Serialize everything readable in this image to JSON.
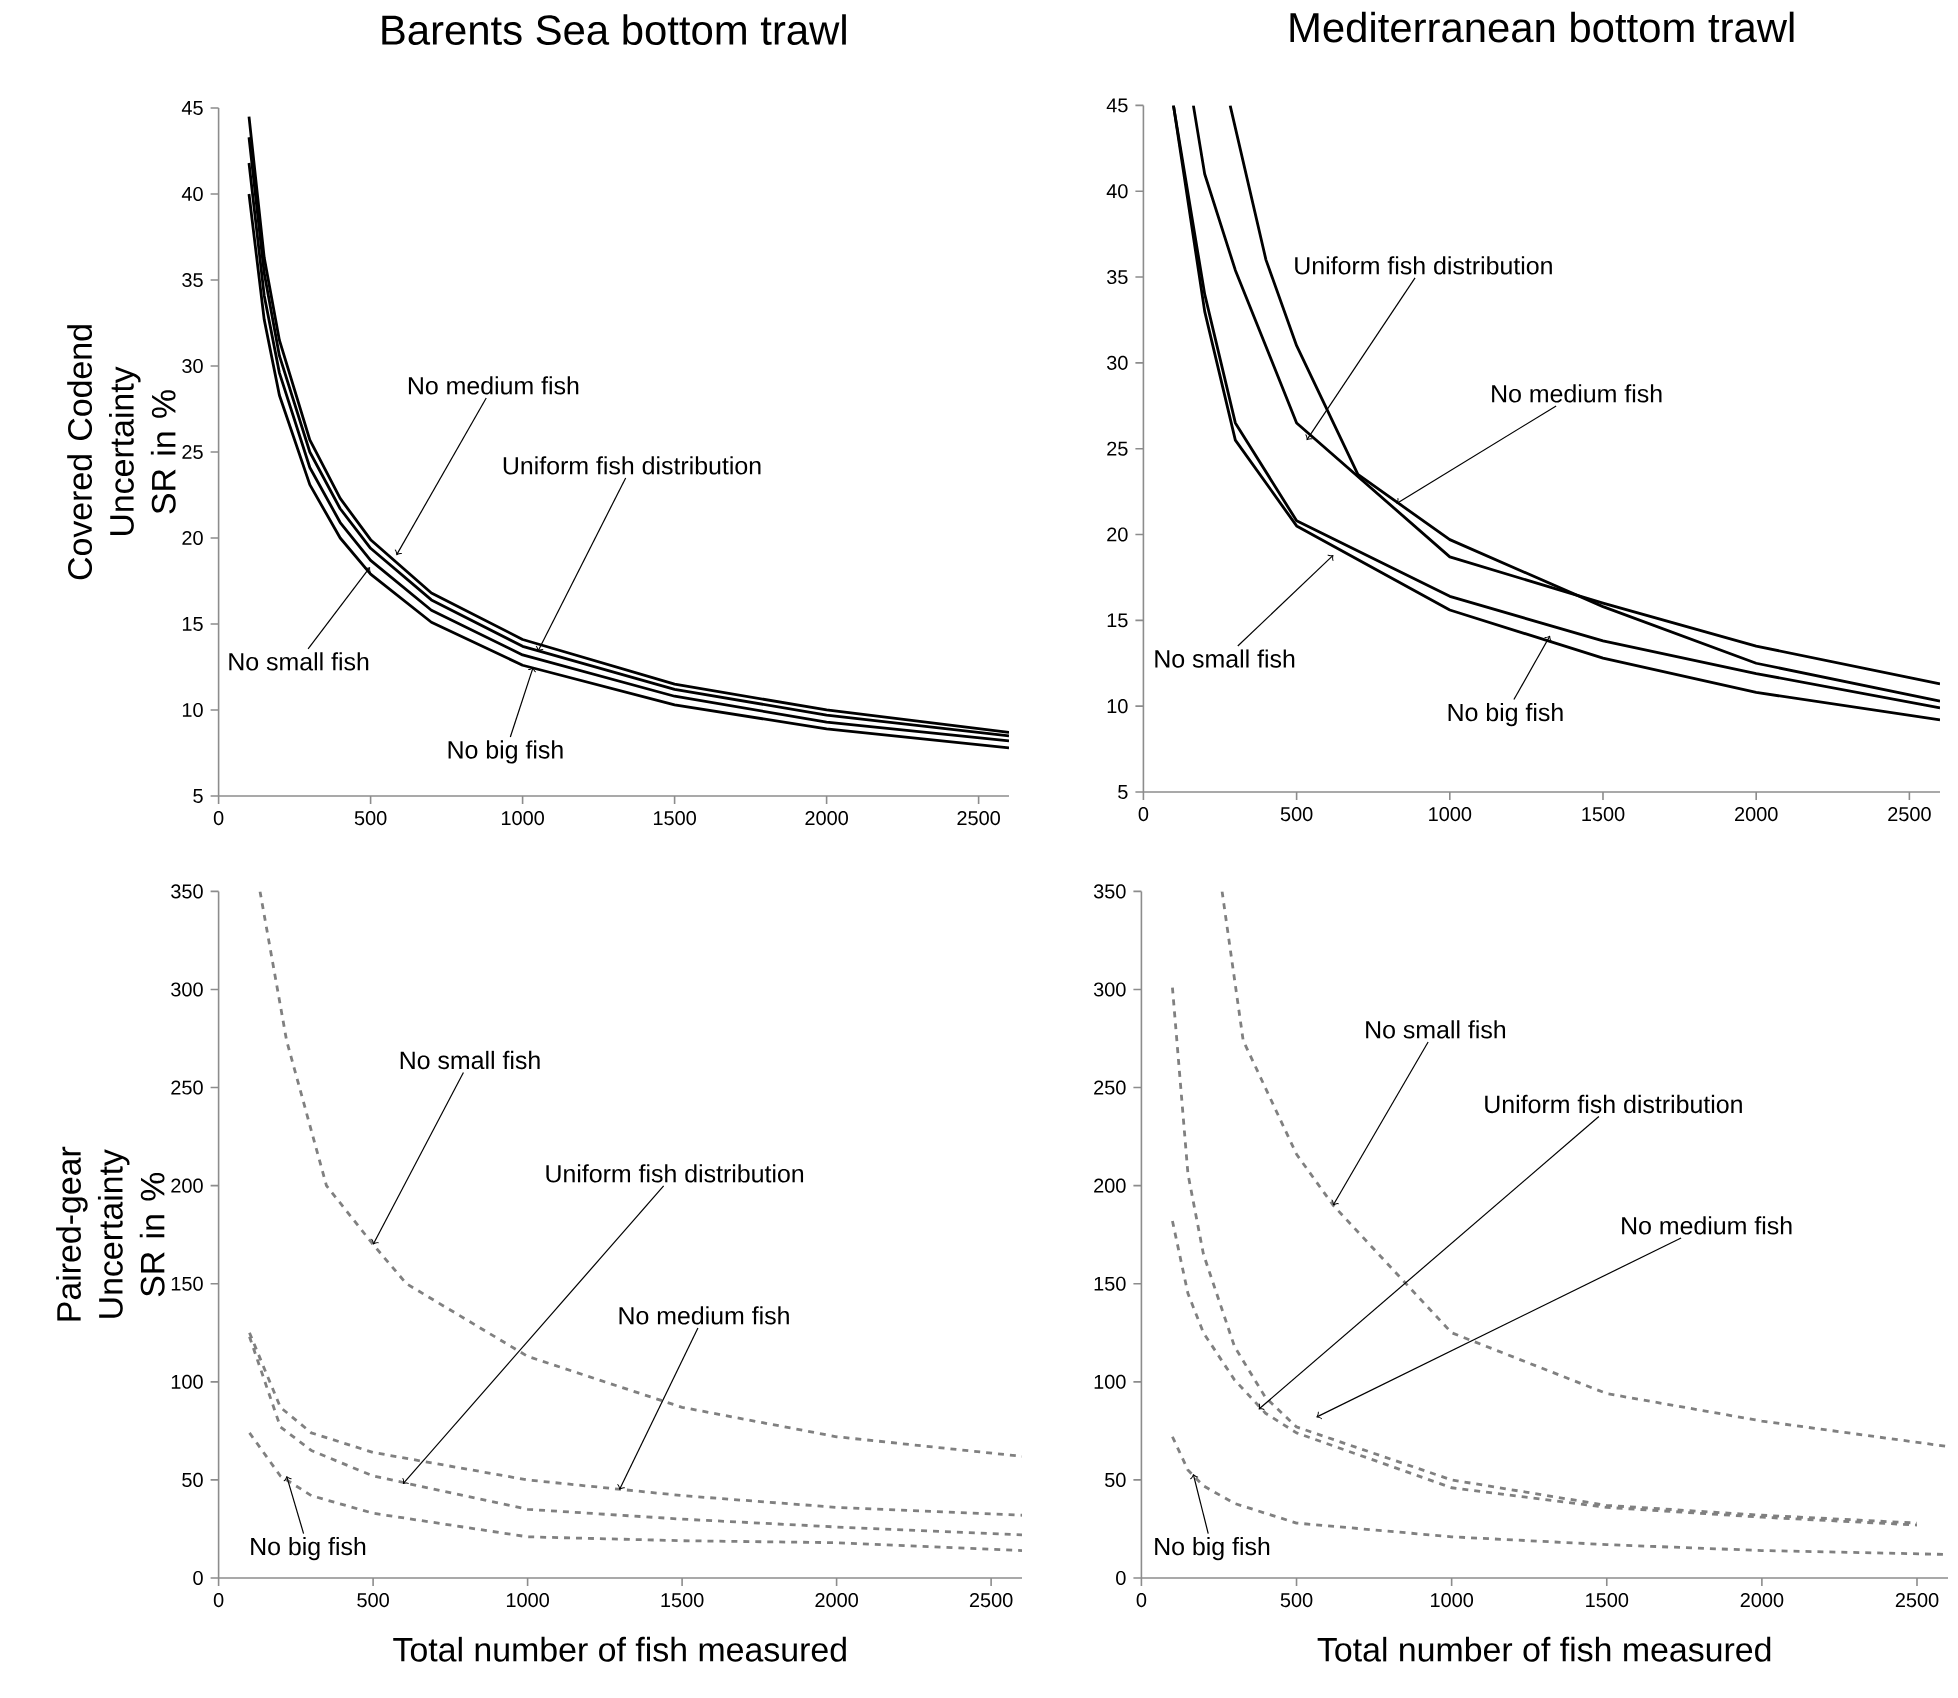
{
  "chart_data": [
    {
      "type": "line",
      "title": "Barents Sea bottom trawl",
      "ylabel": "Covered Codend Uncertainty SR in %",
      "xlim": [
        0,
        2600
      ],
      "ylim": [
        5,
        45
      ],
      "xticks": [
        0,
        500,
        1000,
        1500,
        2000,
        2500
      ],
      "yticks": [
        5,
        10,
        15,
        20,
        25,
        30,
        35,
        40,
        45
      ],
      "line_style": "solid",
      "marker": "none",
      "series": [
        {
          "color": "#000000",
          "x": [
            100,
            150,
            200,
            300,
            400,
            500,
            700,
            1000,
            1500,
            2000,
            2600
          ],
          "values": [
            44.5,
            36.3,
            31.5,
            25.7,
            22.3,
            19.9,
            16.8,
            14.1,
            11.5,
            10.0,
            8.7
          ]
        },
        {
          "color": "#000000",
          "x": [
            100,
            150,
            200,
            300,
            400,
            500,
            700,
            1000,
            1500,
            2000,
            2600
          ],
          "values": [
            43.3,
            35.4,
            30.6,
            25.0,
            21.7,
            19.4,
            16.4,
            13.7,
            11.2,
            9.7,
            8.5
          ]
        },
        {
          "color": "#000000",
          "x": [
            100,
            150,
            200,
            300,
            400,
            500,
            700,
            1000,
            1500,
            2000,
            2600
          ],
          "values": [
            41.8,
            34.1,
            29.6,
            24.1,
            20.9,
            18.7,
            15.8,
            13.2,
            10.8,
            9.3,
            8.2
          ]
        },
        {
          "color": "#000000",
          "x": [
            100,
            150,
            200,
            300,
            400,
            500,
            700,
            1000,
            1500,
            2000,
            2600
          ],
          "values": [
            40.0,
            32.7,
            28.3,
            23.1,
            20.0,
            17.9,
            15.1,
            12.6,
            10.3,
            8.9,
            7.8
          ]
        }
      ],
      "annotations": [
        {
          "text": "No medium fish",
          "x": 585,
          "y": 19.0
        },
        {
          "text": "Uniform fish distribution",
          "x": 1050,
          "y": 13.4
        },
        {
          "text": "No small fish",
          "x": 498,
          "y": 18.3
        },
        {
          "text": "No big fish",
          "x": 1035,
          "y": 12.5
        }
      ]
    },
    {
      "type": "line",
      "title": "Mediterranean bottom trawl",
      "xlim": [
        0,
        2600
      ],
      "ylim": [
        5,
        45
      ],
      "xticks": [
        0,
        500,
        1000,
        1500,
        2000,
        2500
      ],
      "yticks": [
        5,
        10,
        15,
        20,
        25,
        30,
        35,
        40,
        45
      ],
      "line_style": "solid",
      "marker": "none",
      "series": [
        {
          "color": "#000000",
          "x": [
            163,
            200,
            300,
            500,
            1000,
            1500,
            2000,
            2600
          ],
          "values": [
            45,
            41,
            35.4,
            26.5,
            18.7,
            16.0,
            13.5,
            11.3
          ]
        },
        {
          "color": "#000000",
          "x": [
            283,
            400,
            500,
            700,
            1000,
            1500,
            2000,
            2600
          ],
          "values": [
            45,
            36,
            31,
            23.5,
            19.7,
            15.8,
            12.5,
            10.3
          ]
        },
        {
          "color": "#000000",
          "x": [
            98,
            200,
            300,
            500,
            1000,
            1500,
            2000,
            2600
          ],
          "values": [
            45,
            33,
            25.5,
            20.5,
            15.6,
            12.8,
            10.8,
            9.2
          ]
        },
        {
          "color": "#000000",
          "x": [
            98,
            200,
            300,
            500,
            1000,
            1500,
            2000,
            2600
          ],
          "values": [
            45,
            34,
            26.5,
            20.8,
            16.4,
            13.8,
            11.9,
            9.9
          ]
        }
      ],
      "annotations": [
        {
          "text": "Uniform fish distribution",
          "x": 533,
          "y": 25.5
        },
        {
          "text": "No medium fish",
          "x": 826,
          "y": 21.8
        },
        {
          "text": "No small fish",
          "x": 620,
          "y": 18.8
        },
        {
          "text": "No big fish",
          "x": 1327,
          "y": 14.1
        }
      ]
    },
    {
      "type": "line",
      "ylabel": "Paired-gear Uncertainty SR in %",
      "xlabel": "Total number of fish measured",
      "xlim": [
        0,
        2600
      ],
      "ylim": [
        0,
        350
      ],
      "xticks": [
        0,
        500,
        1000,
        1500,
        2000,
        2500
      ],
      "yticks": [
        0,
        50,
        100,
        150,
        200,
        250,
        300,
        350
      ],
      "line_style": "dashed",
      "marker": "none",
      "series": [
        {
          "color": "#808080",
          "x": [
            134,
            220,
            349,
            500,
            608,
            1000,
            1500,
            2000,
            2600
          ],
          "values": [
            350,
            274,
            200,
            170,
            150,
            113,
            87,
            72,
            62
          ]
        },
        {
          "color": "#808080",
          "x": [
            100,
            200,
            300,
            500,
            1000,
            1500,
            2000,
            2600
          ],
          "values": [
            123,
            77,
            65,
            52,
            35,
            30,
            26,
            22
          ]
        },
        {
          "color": "#808080",
          "x": [
            100,
            200,
            300,
            500,
            1000,
            1500,
            2000,
            2600
          ],
          "values": [
            125,
            87,
            74,
            64,
            50,
            42,
            36,
            32
          ]
        },
        {
          "color": "#808080",
          "x": [
            100,
            200,
            300,
            500,
            1000,
            1500,
            2000,
            2600
          ],
          "values": [
            74,
            52,
            42,
            33,
            21,
            19,
            18,
            14
          ]
        }
      ],
      "annotations": [
        {
          "text": "No small fish",
          "x": 500,
          "y": 170
        },
        {
          "text": "Uniform fish distribution",
          "x": 597,
          "y": 48
        },
        {
          "text": "No medium fish",
          "x": 1297,
          "y": 45
        },
        {
          "text": "No big fish",
          "x": 220,
          "y": 52
        }
      ]
    },
    {
      "type": "line",
      "xlabel": "Total number of fish measured",
      "xlim": [
        0,
        2600
      ],
      "ylim": [
        0,
        350
      ],
      "xticks": [
        0,
        500,
        1000,
        1500,
        2000,
        2500
      ],
      "yticks": [
        0,
        50,
        100,
        150,
        200,
        250,
        300,
        350
      ],
      "line_style": "dashed",
      "marker": "none",
      "series": [
        {
          "color": "#808080",
          "x": [
            260,
            328,
            500,
            618,
            1000,
            1500,
            2000,
            2600
          ],
          "values": [
            350,
            274,
            216,
            190,
            125,
            94,
            80,
            67
          ]
        },
        {
          "color": "#808080",
          "x": [
            100,
            150,
            200,
            300,
            400,
            500,
            1000,
            1500,
            2000,
            2500
          ],
          "values": [
            182,
            145,
            125,
            101,
            84,
            74,
            46,
            36,
            31,
            27
          ]
        },
        {
          "color": "#808080",
          "x": [
            100,
            150,
            200,
            300,
            400,
            500,
            1000,
            1500,
            2000,
            2500
          ],
          "values": [
            301,
            206,
            165,
            118,
            92,
            77,
            50,
            37,
            32,
            28
          ]
        },
        {
          "color": "#808080",
          "x": [
            100,
            150,
            200,
            300,
            500,
            1000,
            1500,
            2000,
            2600
          ],
          "values": [
            72,
            55,
            47,
            38,
            28,
            21,
            17,
            14,
            12
          ]
        }
      ],
      "annotations": [
        {
          "text": "No small fish",
          "x": 618,
          "y": 190
        },
        {
          "text": "Uniform fish distribution",
          "x": 378,
          "y": 86
        },
        {
          "text": "No medium fish",
          "x": 564,
          "y": 82
        },
        {
          "text": "No big fish",
          "x": 167,
          "y": 53
        }
      ]
    }
  ]
}
